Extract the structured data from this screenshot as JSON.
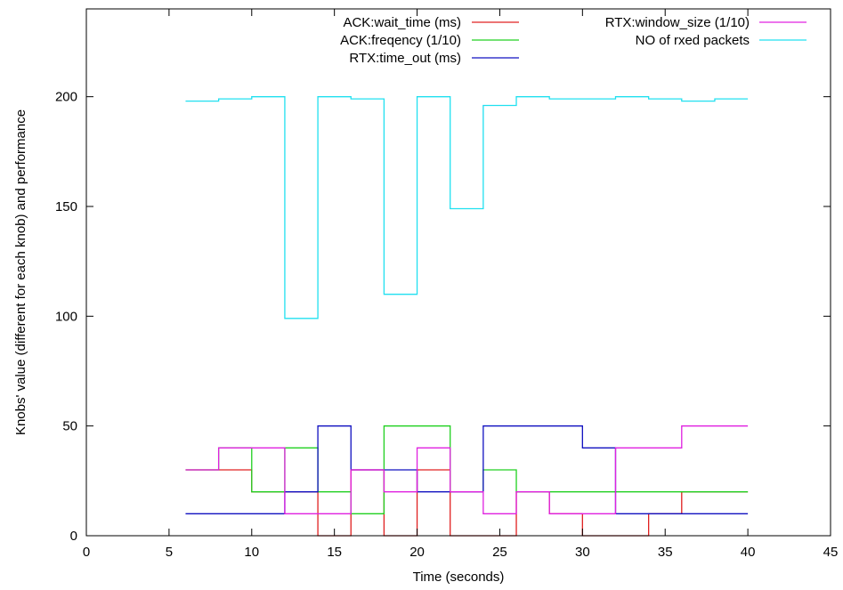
{
  "chart_data": {
    "type": "line",
    "step": true,
    "title": "",
    "xlabel": "Time (seconds)",
    "ylabel": "Knobs' value (different for each knob) and performance",
    "xlim": [
      0,
      45
    ],
    "ylim": [
      0,
      240
    ],
    "xticks": [
      0,
      5,
      10,
      15,
      20,
      25,
      30,
      35,
      40,
      45
    ],
    "yticks": [
      0,
      50,
      100,
      150,
      200
    ],
    "grid": false,
    "legend_placement": "top",
    "series": [
      {
        "name": "ACK:wait_time (ms)",
        "color": "#e02020",
        "x": [
          6,
          8,
          10,
          12,
          14,
          16,
          18,
          20,
          22,
          24,
          26,
          28,
          30,
          32,
          34,
          36,
          38,
          40
        ],
        "y": [
          30,
          30,
          20,
          20,
          0,
          30,
          0,
          30,
          0,
          0,
          20,
          10,
          0,
          0,
          10,
          20,
          20,
          20
        ]
      },
      {
        "name": "ACK:freqency (1/10)",
        "color": "#20d020",
        "x": [
          6,
          8,
          10,
          12,
          14,
          16,
          18,
          20,
          22,
          24,
          26,
          28,
          30,
          32,
          34,
          36,
          38,
          40
        ],
        "y": [
          30,
          40,
          20,
          40,
          20,
          10,
          50,
          50,
          20,
          30,
          20,
          20,
          20,
          20,
          20,
          20,
          20,
          20
        ]
      },
      {
        "name": "RTX:time_out (ms)",
        "color": "#1010c0",
        "x": [
          6,
          8,
          10,
          12,
          14,
          16,
          18,
          20,
          22,
          24,
          26,
          28,
          30,
          32,
          34,
          36,
          38,
          40
        ],
        "y": [
          10,
          10,
          10,
          20,
          50,
          30,
          30,
          20,
          20,
          50,
          50,
          50,
          40,
          10,
          10,
          10,
          10,
          10
        ]
      },
      {
        "name": "RTX:window_size (1/10)",
        "color": "#e020e0",
        "x": [
          6,
          8,
          10,
          12,
          14,
          16,
          18,
          20,
          22,
          24,
          26,
          28,
          30,
          32,
          34,
          36,
          38,
          40
        ],
        "y": [
          30,
          40,
          40,
          10,
          10,
          30,
          20,
          40,
          20,
          10,
          20,
          10,
          10,
          40,
          40,
          50,
          50,
          50
        ]
      },
      {
        "name": "NO of rxed packets",
        "color": "#20e0f0",
        "x": [
          6,
          8,
          10,
          12,
          14,
          16,
          18,
          20,
          22,
          24,
          26,
          28,
          30,
          32,
          34,
          36,
          38,
          40
        ],
        "y": [
          198,
          199,
          200,
          99,
          200,
          199,
          110,
          200,
          149,
          196,
          200,
          199,
          199,
          200,
          199,
          198,
          199,
          199
        ]
      }
    ]
  }
}
